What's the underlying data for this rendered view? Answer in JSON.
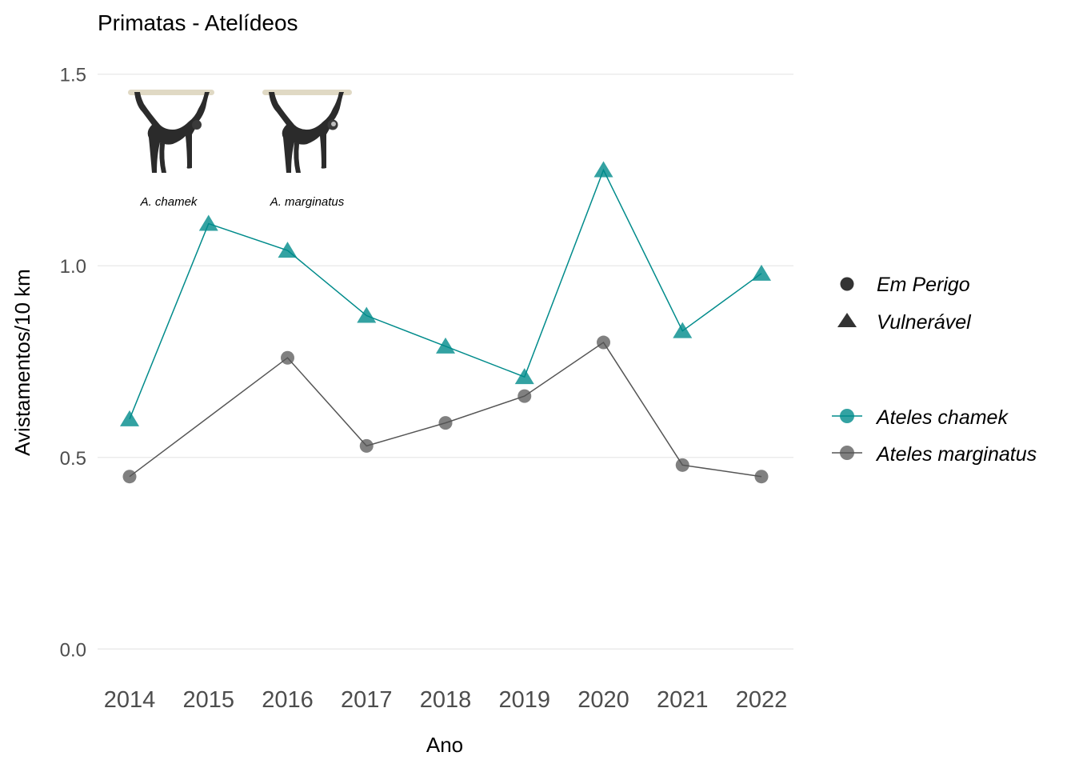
{
  "chart_data": {
    "type": "line",
    "title": "Primatas - Atelídeos",
    "xlabel": "Ano",
    "ylabel": "Avistamentos/10 km",
    "ylim": [
      -0.06,
      1.56
    ],
    "yticks": [
      "0.0",
      "0.5",
      "1.0",
      "1.5"
    ],
    "ytick_values": [
      0.0,
      0.5,
      1.0,
      1.5
    ],
    "categories": [
      "2014",
      "2015",
      "2016",
      "2017",
      "2018",
      "2019",
      "2020",
      "2021",
      "2022"
    ],
    "grid": true,
    "legend_position": "right",
    "series": [
      {
        "name": "Ateles chamek",
        "status": "Vulnerável",
        "marker": "triangle",
        "color": "#008B8B",
        "values": [
          0.6,
          1.11,
          1.04,
          0.87,
          0.79,
          0.71,
          1.25,
          0.83,
          0.98
        ]
      },
      {
        "name": "Ateles marginatus",
        "status": "Em Perigo",
        "marker": "circle",
        "color": "#555555",
        "values": [
          0.45,
          null,
          0.76,
          0.53,
          0.59,
          0.66,
          0.8,
          0.48,
          0.45
        ]
      }
    ],
    "shape_legend": [
      {
        "label": "Em Perigo",
        "marker": "circle"
      },
      {
        "label": "Vulnerável",
        "marker": "triangle"
      }
    ],
    "image_captions": [
      "A. chamek",
      "A. marginatus"
    ]
  }
}
